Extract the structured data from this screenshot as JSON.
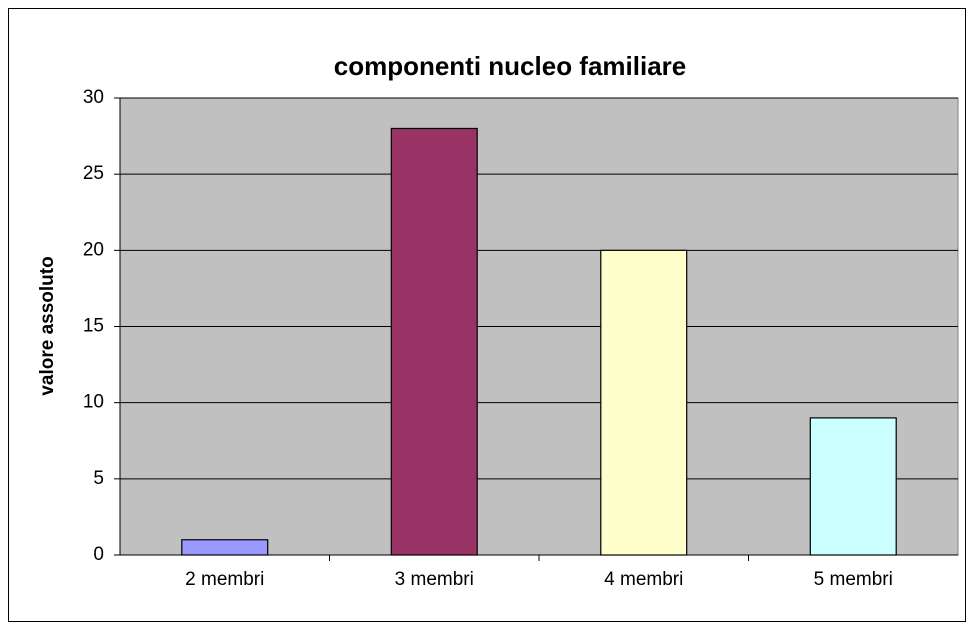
{
  "chart_data": {
    "type": "bar",
    "title": "componenti nucleo familiare",
    "y_axis_label": "valore assoluto",
    "categories": [
      "2 membri",
      "3 membri",
      "4 membri",
      "5 membri"
    ],
    "values": [
      1,
      28,
      20,
      9
    ],
    "colors": [
      "#9999ff",
      "#993366",
      "#ffffcc",
      "#ccffff"
    ],
    "ylim": [
      0,
      30
    ],
    "yticks": [
      0,
      5,
      10,
      15,
      20,
      25,
      30
    ],
    "grid": true
  }
}
